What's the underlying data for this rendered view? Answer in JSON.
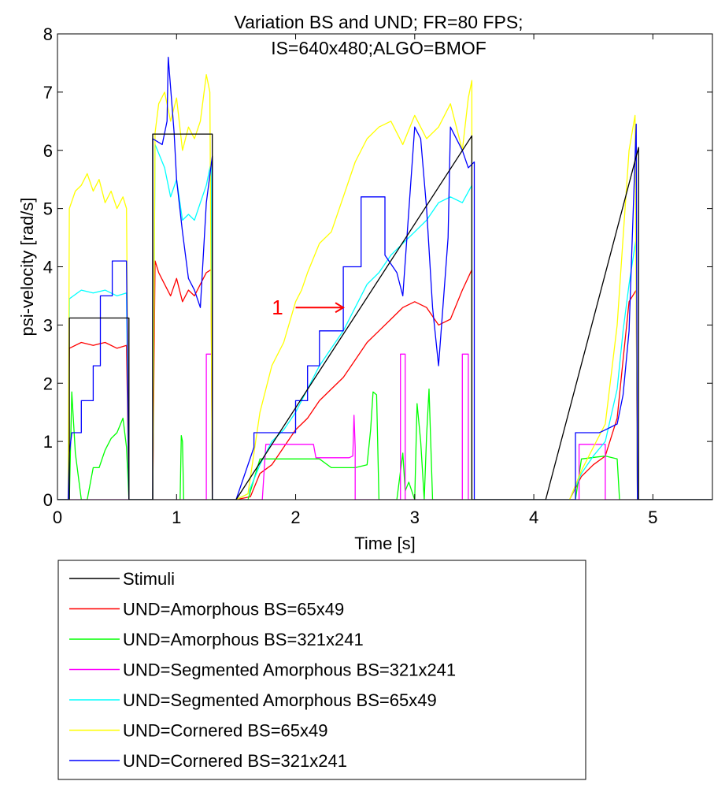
{
  "chart_data": {
    "type": "line",
    "title": [
      "Variation BS and UND; FR=80 FPS;",
      "IS=640x480;ALGO=BMOF"
    ],
    "xlabel": "Time [s]",
    "ylabel": "psi-velocity [rad/s]",
    "xlim": [
      0,
      5.5
    ],
    "ylim": [
      0,
      8
    ],
    "xticks": [
      0,
      1,
      2,
      3,
      4,
      5
    ],
    "yticks": [
      0,
      1,
      2,
      3,
      4,
      5,
      6,
      7,
      8
    ],
    "xtick_labels": [
      "0",
      "1",
      "2",
      "3",
      "4",
      "5"
    ],
    "ytick_labels": [
      "0",
      "1",
      "2",
      "3",
      "4",
      "5",
      "6",
      "7",
      "8"
    ],
    "grid": false,
    "legend_position": "below",
    "annotation": {
      "text": "1",
      "color": "#ff0000",
      "arrow_from": [
        2.0,
        3.3
      ],
      "arrow_to": [
        2.4,
        3.3
      ]
    },
    "series": [
      {
        "name": "Stimuli",
        "color": "#000000",
        "x": [
          0,
          0.1,
          0.1,
          0.6,
          0.6,
          0.8,
          0.8,
          1.3,
          1.3,
          1.5,
          3.48,
          3.48,
          4.1,
          4.88,
          4.88,
          5.5
        ],
        "y": [
          0,
          0,
          3.12,
          3.12,
          0,
          0,
          6.28,
          6.28,
          0,
          0,
          6.25,
          0,
          0,
          6.05,
          0,
          0
        ]
      },
      {
        "name": "UND=Amorphous BS=65x49",
        "color": "#ff0000",
        "x": [
          0,
          0.09,
          0.1,
          0.2,
          0.3,
          0.4,
          0.5,
          0.58,
          0.6,
          0.8,
          0.82,
          0.85,
          0.9,
          0.95,
          1.0,
          1.05,
          1.1,
          1.15,
          1.2,
          1.25,
          1.29,
          1.3,
          1.5,
          1.62,
          1.7,
          1.8,
          1.9,
          2.0,
          2.1,
          2.2,
          2.3,
          2.4,
          2.5,
          2.6,
          2.7,
          2.8,
          2.9,
          3.0,
          3.1,
          3.2,
          3.3,
          3.4,
          3.48,
          3.48,
          4.3,
          4.4,
          4.5,
          4.6,
          4.7,
          4.75,
          4.8,
          4.86,
          4.87,
          5.5
        ],
        "y": [
          0,
          0,
          2.6,
          2.7,
          2.65,
          2.7,
          2.6,
          2.65,
          0,
          0,
          4.1,
          3.9,
          3.7,
          3.5,
          3.8,
          3.4,
          3.6,
          3.5,
          3.7,
          3.9,
          3.95,
          0,
          0,
          0.05,
          0.45,
          0.6,
          0.9,
          1.2,
          1.4,
          1.7,
          1.9,
          2.1,
          2.4,
          2.7,
          2.9,
          3.1,
          3.3,
          3.4,
          3.3,
          3.0,
          3.1,
          3.6,
          3.95,
          0,
          0,
          0.4,
          0.6,
          0.75,
          1.4,
          2.4,
          3.4,
          3.6,
          0,
          0
        ]
      },
      {
        "name": "UND=Amorphous BS=321x241",
        "color": "#00ff00",
        "x": [
          0,
          0.1,
          0.12,
          0.15,
          0.2,
          0.25,
          0.3,
          0.35,
          0.4,
          0.45,
          0.5,
          0.55,
          0.58,
          0.6,
          0.8,
          1.03,
          1.04,
          1.05,
          1.06,
          1.3,
          1.6,
          1.7,
          1.8,
          2.2,
          2.3,
          2.35,
          2.5,
          2.6,
          2.63,
          2.65,
          2.68,
          2.7,
          2.85,
          2.9,
          2.92,
          2.95,
          3.0,
          3.02,
          3.05,
          3.08,
          3.1,
          3.12,
          3.15,
          3.5,
          4.35,
          4.4,
          4.6,
          4.7,
          4.72,
          5.5
        ],
        "y": [
          0,
          0,
          1.85,
          0.8,
          0,
          0,
          0.55,
          0.55,
          0.85,
          1.05,
          1.15,
          1.4,
          0.9,
          0,
          0,
          0,
          1.1,
          1.0,
          0,
          0,
          0,
          0.7,
          0.7,
          0.7,
          0.55,
          0.55,
          0.55,
          0.6,
          1.2,
          1.85,
          1.8,
          0,
          0,
          0.8,
          0.15,
          0.3,
          0,
          1.65,
          1.0,
          0,
          1.1,
          1.9,
          0,
          0,
          0,
          0.7,
          0.75,
          0.7,
          0,
          0
        ]
      },
      {
        "name": "UND=Segmented Amorphous BS=321x241",
        "color": "#ff00ff",
        "x": [
          0,
          1.25,
          1.25,
          1.3,
          1.3,
          1.72,
          1.75,
          2.0,
          2.15,
          2.17,
          2.45,
          2.48,
          2.49,
          2.5,
          2.5,
          2.88,
          2.88,
          2.92,
          2.92,
          3.4,
          3.4,
          3.45,
          3.45,
          4.38,
          4.38,
          4.6,
          4.6,
          5.5
        ],
        "y": [
          0,
          0,
          2.5,
          2.5,
          0,
          0,
          0.95,
          0.95,
          0.95,
          0.72,
          0.72,
          0.75,
          1.45,
          0.9,
          0,
          0,
          2.5,
          2.5,
          0,
          0,
          2.5,
          2.5,
          0,
          0,
          0.95,
          0.95,
          0,
          0
        ]
      },
      {
        "name": "UND=Segmented Amorphous BS=65x49",
        "color": "#00ffff",
        "x": [
          0,
          0.09,
          0.1,
          0.2,
          0.3,
          0.4,
          0.5,
          0.58,
          0.6,
          0.8,
          0.82,
          0.9,
          0.95,
          1.0,
          1.05,
          1.1,
          1.15,
          1.2,
          1.25,
          1.29,
          1.3,
          1.5,
          1.6,
          1.7,
          1.8,
          1.9,
          2.0,
          2.1,
          2.2,
          2.3,
          2.4,
          2.5,
          2.6,
          2.7,
          2.8,
          2.9,
          3.0,
          3.1,
          3.2,
          3.3,
          3.4,
          3.48,
          3.48,
          4.3,
          4.4,
          4.5,
          4.6,
          4.7,
          4.75,
          4.8,
          4.86,
          4.87,
          5.5
        ],
        "y": [
          0,
          0,
          3.45,
          3.6,
          3.55,
          3.6,
          3.5,
          3.55,
          0,
          0,
          6.1,
          5.7,
          5.2,
          5.5,
          4.8,
          4.9,
          4.8,
          5.1,
          5.4,
          5.8,
          0,
          0,
          0.1,
          0.6,
          1.0,
          1.2,
          1.5,
          1.9,
          2.3,
          2.6,
          2.9,
          3.3,
          3.7,
          3.9,
          4.2,
          4.4,
          4.6,
          4.8,
          5.1,
          5.2,
          5.1,
          5.4,
          0,
          0,
          0.45,
          0.75,
          1.0,
          1.9,
          2.9,
          3.7,
          4.5,
          0,
          0
        ]
      },
      {
        "name": "UND=Cornered BS=65x49",
        "color": "#ffff00",
        "x": [
          0,
          0.09,
          0.1,
          0.15,
          0.2,
          0.25,
          0.3,
          0.35,
          0.4,
          0.45,
          0.5,
          0.55,
          0.58,
          0.6,
          0.8,
          0.82,
          0.85,
          0.9,
          0.95,
          1.0,
          1.05,
          1.1,
          1.15,
          1.2,
          1.25,
          1.28,
          1.3,
          1.5,
          1.6,
          1.7,
          1.8,
          1.9,
          2.0,
          2.05,
          2.1,
          2.2,
          2.3,
          2.4,
          2.5,
          2.6,
          2.7,
          2.8,
          2.9,
          3.0,
          3.1,
          3.2,
          3.3,
          3.4,
          3.45,
          3.48,
          3.48,
          4.3,
          4.4,
          4.5,
          4.6,
          4.7,
          4.75,
          4.8,
          4.85,
          4.87,
          5.5
        ],
        "y": [
          0,
          0,
          5.0,
          5.3,
          5.4,
          5.6,
          5.3,
          5.5,
          5.1,
          5.3,
          5.0,
          5.2,
          5.0,
          0,
          0,
          6.3,
          6.8,
          7.0,
          6.5,
          6.9,
          6.0,
          6.4,
          6.2,
          6.5,
          7.3,
          7.0,
          0,
          0,
          0.1,
          1.5,
          2.3,
          2.7,
          3.4,
          3.6,
          3.9,
          4.4,
          4.6,
          5.2,
          5.8,
          6.2,
          6.4,
          6.5,
          6.1,
          6.6,
          6.2,
          6.4,
          6.8,
          6.0,
          6.9,
          7.2,
          0,
          0,
          0.5,
          0.9,
          1.3,
          3.0,
          4.5,
          6.0,
          6.6,
          0,
          0
        ]
      },
      {
        "name": "UND=Cornered BS=321x241",
        "color": "#0000ff",
        "x": [
          0,
          0.09,
          0.1,
          0.12,
          0.12,
          0.2,
          0.2,
          0.3,
          0.3,
          0.36,
          0.36,
          0.46,
          0.46,
          0.58,
          0.6,
          0.8,
          0.8,
          0.88,
          0.92,
          0.93,
          0.98,
          1.0,
          1.05,
          1.1,
          1.15,
          1.2,
          1.25,
          1.3,
          1.3,
          1.5,
          1.65,
          1.65,
          2.0,
          2.0,
          2.1,
          2.1,
          2.2,
          2.2,
          2.4,
          2.4,
          2.55,
          2.55,
          2.75,
          2.75,
          2.85,
          2.9,
          3.0,
          3.05,
          3.1,
          3.15,
          3.2,
          3.28,
          3.3,
          3.4,
          3.45,
          3.5,
          3.5,
          4.35,
          4.35,
          4.55,
          4.6,
          4.7,
          4.75,
          4.8,
          4.86,
          4.87,
          5.5
        ],
        "y": [
          0,
          0,
          0.8,
          1.15,
          1.15,
          1.15,
          1.7,
          1.7,
          2.3,
          2.3,
          3.5,
          3.5,
          4.1,
          4.1,
          0,
          0,
          6.2,
          6.1,
          6.5,
          7.6,
          6.3,
          5.5,
          4.6,
          3.8,
          3.6,
          3.3,
          5.1,
          5.9,
          0,
          0,
          0.9,
          1.15,
          1.15,
          1.7,
          1.7,
          2.3,
          2.3,
          2.9,
          2.9,
          4.0,
          4.0,
          5.2,
          5.2,
          4.2,
          3.9,
          3.5,
          6.4,
          6.2,
          5.0,
          3.3,
          2.3,
          4.5,
          6.4,
          6.0,
          5.7,
          5.8,
          0,
          0,
          1.15,
          1.15,
          1.2,
          1.3,
          1.8,
          2.9,
          6.45,
          0,
          0
        ]
      }
    ]
  }
}
